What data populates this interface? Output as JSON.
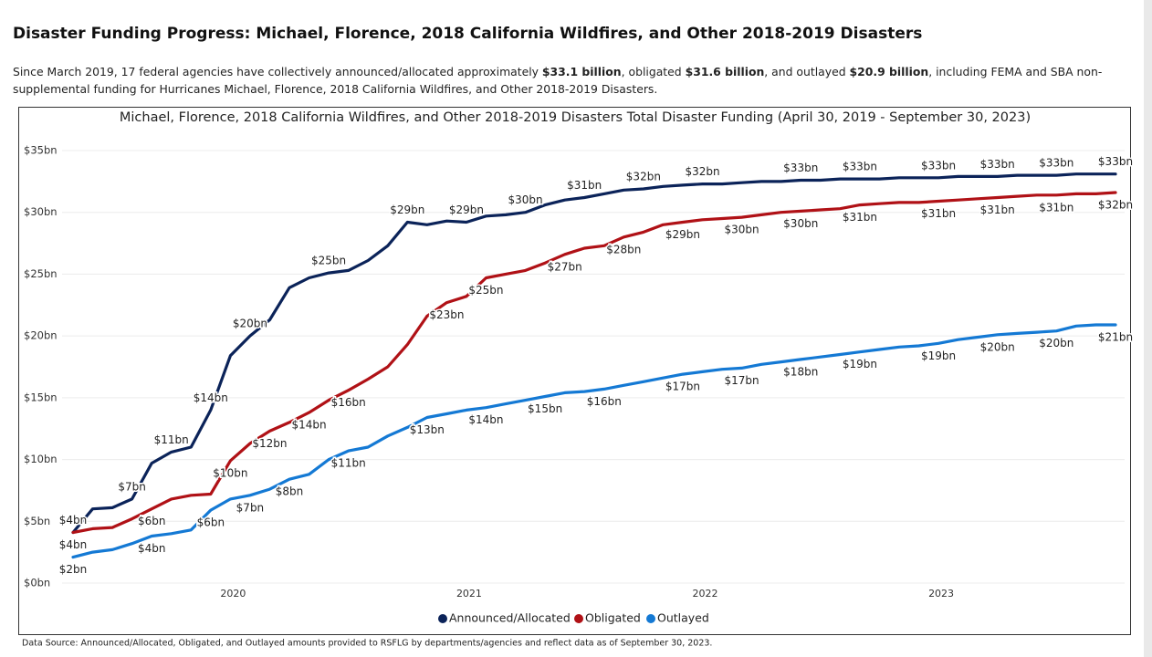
{
  "header": {
    "title": "Disaster Funding Progress: Michael, Florence, 2018 California Wildfires, and Other 2018-2019 Disasters",
    "description": [
      "Since March 2019, 17 federal agencies have collectively announced/allocated approximately ",
      "$33.1 billion",
      ", obligated ",
      "$31.6 billion",
      ", and outlayed ",
      "$20.9 billion",
      ", including FEMA and SBA non-supplemental funding for Hurricanes Michael, Florence, 2018 California Wildfires, and Other 2018-2019 Disasters."
    ]
  },
  "chart_data": {
    "type": "line",
    "title": "Michael, Florence, 2018 California Wildfires, and Other 2018-2019 Disasters Total Disaster Funding (April 30, 2019 - September 30, 2023)",
    "categories": [
      null,
      null,
      null,
      null,
      null,
      null,
      null,
      null,
      "2020",
      null,
      null,
      null,
      null,
      null,
      null,
      null,
      null,
      null,
      null,
      null,
      "2021",
      null,
      null,
      null,
      null,
      null,
      null,
      null,
      null,
      null,
      null,
      null,
      "2022",
      null,
      null,
      null,
      null,
      null,
      null,
      null,
      null,
      null,
      null,
      null,
      "2023",
      null,
      null,
      null,
      null,
      null,
      null,
      null,
      null,
      null
    ],
    "ylim": [
      0,
      35
    ],
    "yticks": [
      {
        "value": 0,
        "label": "$0bn"
      },
      {
        "value": 5,
        "label": "$5bn"
      },
      {
        "value": 10,
        "label": "$10bn"
      },
      {
        "value": 15,
        "label": "$15bn"
      },
      {
        "value": 20,
        "label": "$20bn"
      },
      {
        "value": 25,
        "label": "$25bn"
      },
      {
        "value": 30,
        "label": "$30bn"
      },
      {
        "value": 35,
        "label": "$35bn"
      }
    ],
    "grid": true,
    "legend": "bottom",
    "series": [
      {
        "name": "Announced/Allocated",
        "color": "#0b2359",
        "values": [
          4.1,
          6.0,
          6.1,
          6.8,
          9.7,
          10.6,
          11.0,
          14.0,
          18.4,
          20.0,
          21.3,
          23.9,
          24.7,
          25.1,
          25.3,
          26.1,
          27.3,
          29.2,
          29.0,
          29.3,
          29.2,
          29.7,
          29.8,
          30.0,
          30.6,
          31.0,
          31.2,
          31.5,
          31.8,
          31.9,
          32.1,
          32.2,
          32.3,
          32.3,
          32.4,
          32.5,
          32.5,
          32.6,
          32.6,
          32.7,
          32.7,
          32.7,
          32.8,
          32.8,
          32.8,
          32.9,
          32.9,
          32.9,
          33.0,
          33.0,
          33.0,
          33.1,
          33.1,
          33.1
        ],
        "value_labels": [
          "$4bn",
          null,
          null,
          "$7bn",
          null,
          "$11bn",
          null,
          "$14bn",
          null,
          "$20bn",
          null,
          null,
          null,
          "$25bn",
          null,
          null,
          null,
          "$29bn",
          null,
          null,
          "$29bn",
          null,
          null,
          "$30bn",
          null,
          null,
          "$31bn",
          null,
          null,
          "$32bn",
          null,
          null,
          "$32bn",
          null,
          null,
          null,
          null,
          "$33bn",
          null,
          null,
          "$33bn",
          null,
          null,
          null,
          "$33bn",
          null,
          null,
          "$33bn",
          null,
          null,
          "$33bn",
          null,
          null,
          "$33bn"
        ]
      },
      {
        "name": "Obligated",
        "color": "#b01116",
        "values": [
          4.1,
          4.4,
          4.5,
          5.2,
          6.0,
          6.8,
          7.1,
          7.2,
          9.9,
          11.3,
          12.3,
          13.0,
          13.8,
          14.8,
          15.6,
          16.5,
          17.5,
          19.3,
          21.6,
          22.7,
          23.2,
          24.7,
          25.0,
          25.3,
          25.9,
          26.6,
          27.1,
          27.3,
          28.0,
          28.4,
          29.0,
          29.2,
          29.4,
          29.5,
          29.6,
          29.8,
          30.0,
          30.1,
          30.2,
          30.3,
          30.6,
          30.7,
          30.8,
          30.8,
          30.9,
          31.0,
          31.1,
          31.2,
          31.3,
          31.4,
          31.4,
          31.5,
          31.5,
          31.6
        ],
        "value_labels": [
          "$4bn",
          null,
          null,
          null,
          "$6bn",
          null,
          null,
          null,
          "$10bn",
          null,
          "$12bn",
          null,
          "$14bn",
          null,
          "$16bn",
          null,
          null,
          null,
          null,
          "$23bn",
          null,
          "$25bn",
          null,
          null,
          null,
          "$27bn",
          null,
          null,
          "$28bn",
          null,
          null,
          "$29bn",
          null,
          null,
          "$30bn",
          null,
          null,
          "$30bn",
          null,
          null,
          "$31bn",
          null,
          null,
          null,
          "$31bn",
          null,
          null,
          "$31bn",
          null,
          null,
          "$31bn",
          null,
          null,
          "$32bn"
        ]
      },
      {
        "name": "Outlayed",
        "color": "#1479d4",
        "values": [
          2.1,
          2.5,
          2.7,
          3.2,
          3.8,
          4.0,
          4.3,
          5.9,
          6.8,
          7.1,
          7.6,
          8.4,
          8.8,
          10.0,
          10.7,
          11.0,
          11.9,
          12.6,
          13.4,
          13.7,
          14.0,
          14.2,
          14.5,
          14.8,
          15.1,
          15.4,
          15.5,
          15.7,
          16.0,
          16.3,
          16.6,
          16.9,
          17.1,
          17.3,
          17.4,
          17.7,
          17.9,
          18.1,
          18.3,
          18.5,
          18.7,
          18.9,
          19.1,
          19.2,
          19.4,
          19.7,
          19.9,
          20.1,
          20.2,
          20.3,
          20.4,
          20.8,
          20.9,
          20.9
        ],
        "value_labels": [
          "$2bn",
          null,
          null,
          null,
          "$4bn",
          null,
          null,
          "$6bn",
          null,
          "$7bn",
          null,
          "$8bn",
          null,
          null,
          "$11bn",
          null,
          null,
          null,
          "$13bn",
          null,
          null,
          "$14bn",
          null,
          null,
          "$15bn",
          null,
          null,
          "$16bn",
          null,
          null,
          null,
          "$17bn",
          null,
          null,
          "$17bn",
          null,
          null,
          "$18bn",
          null,
          null,
          "$19bn",
          null,
          null,
          null,
          "$19bn",
          null,
          null,
          "$20bn",
          null,
          null,
          "$20bn",
          null,
          null,
          "$21bn"
        ]
      }
    ],
    "source": "Data Source: Announced/Allocated, Obligated, and Outlayed amounts provided to RSFLG by departments/agencies and reflect data as of September 30, 2023."
  }
}
